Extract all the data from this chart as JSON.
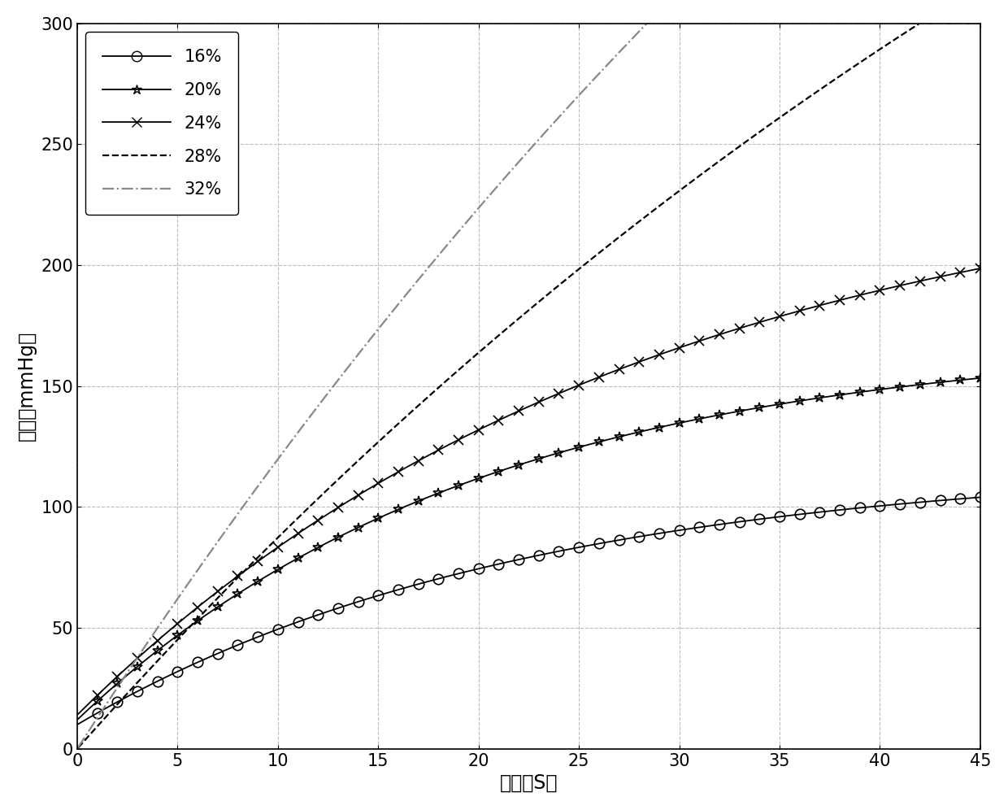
{
  "xlabel": "时间（S）",
  "ylabel": "压力（mmHg）",
  "xlim": [
    0,
    45
  ],
  "ylim": [
    0,
    300
  ],
  "xticks": [
    0,
    5,
    10,
    15,
    20,
    25,
    30,
    35,
    40,
    45
  ],
  "yticks": [
    0,
    50,
    100,
    150,
    200,
    250,
    300
  ],
  "series": [
    {
      "label": "16%",
      "Pmax": 118,
      "tau": 22,
      "P_init": 10,
      "marker": "o",
      "linestyle": "-",
      "color": "#000000",
      "markersize": 9,
      "linewidth": 1.3,
      "markerfacecolor": "none"
    },
    {
      "label": "20%",
      "Pmax": 170,
      "tau": 20,
      "P_init": 12,
      "marker": "*",
      "linestyle": "-",
      "color": "#000000",
      "markersize": 9,
      "linewidth": 1.3,
      "markerfacecolor": "none"
    },
    {
      "label": "24%",
      "Pmax": 245,
      "tau": 28,
      "P_init": 14,
      "marker": "x",
      "linestyle": "-",
      "color": "#000000",
      "markersize": 8,
      "linewidth": 1.3,
      "markerfacecolor": "auto"
    },
    {
      "label": "28%",
      "Pmax": 2000,
      "tau": 200,
      "P_init": 0,
      "marker": null,
      "linestyle": "--",
      "color": "#000000",
      "markersize": 0,
      "linewidth": 1.6,
      "markerfacecolor": "none"
    },
    {
      "label": "32%",
      "Pmax": 2000,
      "tau": 130,
      "P_init": 0,
      "marker": null,
      "linestyle": "-.",
      "color": "#888888",
      "markersize": 0,
      "linewidth": 1.6,
      "markerfacecolor": "none"
    }
  ],
  "grid_color": "#bbbbbb",
  "grid_linestyle": "--",
  "grid_linewidth": 0.8,
  "legend_fontsize": 15,
  "axis_fontsize": 17,
  "tick_fontsize": 15,
  "figure_width": 12.4,
  "figure_height": 9.96,
  "dpi": 100
}
